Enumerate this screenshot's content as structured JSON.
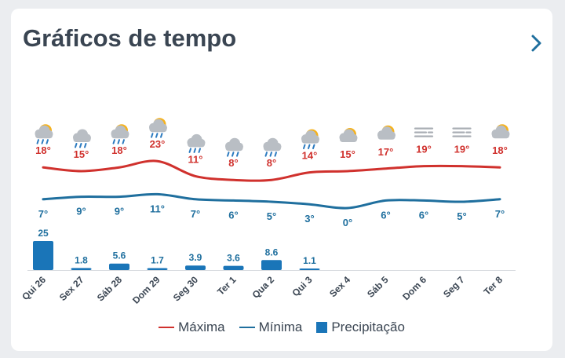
{
  "card": {
    "title": "Gráficos de tempo",
    "more_icon": "chevron-right-icon"
  },
  "colors": {
    "max": "#d0312d",
    "min": "#1f6f9e",
    "precip": "#1a75b8",
    "text": "#3a4552"
  },
  "chart_data": {
    "type": "line",
    "categories": [
      "Qui 26",
      "Sex 27",
      "Sáb 28",
      "Dom 29",
      "Seg 30",
      "Ter 1",
      "Qua 2",
      "Qui 3",
      "Sex 4",
      "Sáb 5",
      "Dom 6",
      "Seg 7",
      "Ter 8"
    ],
    "icons": [
      "sun-rain-icon",
      "cloud-rain-icon",
      "sun-rain-icon",
      "sun-rain-icon",
      "cloud-rain-icon",
      "cloud-rain-icon",
      "cloud-rain-icon",
      "sun-rain-icon",
      "sun-cloud-icon",
      "sun-cloud-icon",
      "fog-icon",
      "fog-icon",
      "sun-cloud-icon"
    ],
    "series": [
      {
        "name": "Máxima",
        "type": "line",
        "values": [
          18,
          15,
          18,
          23,
          11,
          8,
          8,
          14,
          15,
          17,
          19,
          19,
          18
        ],
        "labels": [
          "18°",
          "15°",
          "18°",
          "23°",
          "11°",
          "8°",
          "8°",
          "14°",
          "15°",
          "17°",
          "19°",
          "19°",
          "18°"
        ]
      },
      {
        "name": "Mínima",
        "type": "line",
        "values": [
          7,
          9,
          9,
          11,
          7,
          6,
          5,
          3,
          0,
          6,
          6,
          5,
          7
        ],
        "labels": [
          "7°",
          "9°",
          "9°",
          "11°",
          "7°",
          "6°",
          "5°",
          "3°",
          "0°",
          "6°",
          "6°",
          "5°",
          "7°"
        ]
      },
      {
        "name": "Precipitação",
        "type": "bar",
        "values": [
          25,
          1.8,
          5.6,
          1.7,
          3.9,
          3.6,
          8.6,
          1.1,
          null,
          null,
          null,
          null,
          null
        ],
        "labels": [
          "25",
          "1.8",
          "5.6",
          "1.7",
          "3.9",
          "3.6",
          "8.6",
          "1.1",
          "",
          "",
          "",
          "",
          ""
        ]
      }
    ],
    "legend": "bottom-center",
    "grid": false
  }
}
